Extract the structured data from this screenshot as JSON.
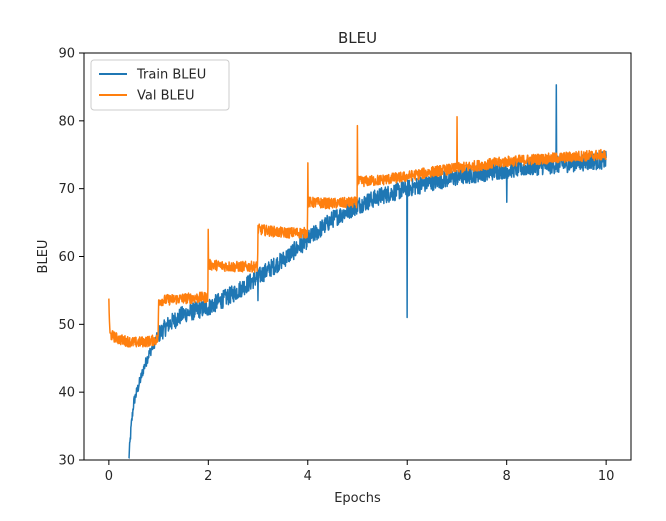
{
  "chart_data": {
    "type": "line",
    "title": "BLEU",
    "xlabel": "Epochs",
    "ylabel": "BLEU",
    "xlim": [
      -0.5,
      10.5
    ],
    "ylim": [
      30,
      90
    ],
    "xticks": [
      0,
      2,
      4,
      6,
      8,
      10
    ],
    "yticks": [
      30,
      40,
      50,
      60,
      70,
      80,
      90
    ],
    "grid": false,
    "legend_position": "top-left",
    "series": [
      {
        "name": "Train BLEU",
        "color": "#1f77b4",
        "points": [
          [
            0.4,
            30
          ],
          [
            0.45,
            35
          ],
          [
            0.5,
            38.5
          ],
          [
            0.6,
            41
          ],
          [
            0.7,
            43.5
          ],
          [
            0.8,
            45.5
          ],
          [
            0.9,
            47
          ],
          [
            1.0,
            48.5
          ],
          [
            1.2,
            50
          ],
          [
            1.5,
            51.5
          ],
          [
            2.0,
            52.5
          ],
          [
            2.5,
            54.5
          ],
          [
            3.0,
            57
          ],
          [
            3.5,
            59.5
          ],
          [
            4.0,
            62.5
          ],
          [
            4.5,
            65.5
          ],
          [
            5.0,
            67.5
          ],
          [
            5.5,
            69
          ],
          [
            6.0,
            70
          ],
          [
            6.5,
            71
          ],
          [
            7.0,
            71.7
          ],
          [
            7.5,
            72.3
          ],
          [
            8.0,
            72.8
          ],
          [
            8.5,
            73.2
          ],
          [
            9.0,
            73.5
          ],
          [
            9.5,
            73.9
          ],
          [
            10.0,
            74.2
          ]
        ],
        "spikes": [
          {
            "x": 3.0,
            "y": 53.5
          },
          {
            "x": 6.0,
            "y": 51
          },
          {
            "x": 8.0,
            "y": 68
          },
          {
            "x": 9.0,
            "y": 85.3
          }
        ]
      },
      {
        "name": "Val BLEU",
        "color": "#ff7f0e",
        "points": [
          [
            0.0,
            53.5
          ],
          [
            0.02,
            48.5
          ],
          [
            0.2,
            47.8
          ],
          [
            0.5,
            47.3
          ],
          [
            0.8,
            47.5
          ],
          [
            0.99,
            47.8
          ],
          [
            1.0,
            53.5
          ],
          [
            1.5,
            53.8
          ],
          [
            1.99,
            54.0
          ],
          [
            2.0,
            58.8
          ],
          [
            2.5,
            58.5
          ],
          [
            2.99,
            58.5
          ],
          [
            3.0,
            64.0
          ],
          [
            3.5,
            63.5
          ],
          [
            3.99,
            63.5
          ],
          [
            4.0,
            68.0
          ],
          [
            4.5,
            67.8
          ],
          [
            4.99,
            68.0
          ],
          [
            5.0,
            71.0
          ],
          [
            5.5,
            71.3
          ],
          [
            6.0,
            71.8
          ],
          [
            6.5,
            72.5
          ],
          [
            7.0,
            73.0
          ],
          [
            7.5,
            73.5
          ],
          [
            8.0,
            74.0
          ],
          [
            8.5,
            74.3
          ],
          [
            9.0,
            74.5
          ],
          [
            9.5,
            74.8
          ],
          [
            10.0,
            75.0
          ]
        ],
        "spikes": [
          {
            "x": 0.0,
            "y": 53.8
          },
          {
            "x": 2.0,
            "y": 64.0
          },
          {
            "x": 4.0,
            "y": 73.8
          },
          {
            "x": 5.0,
            "y": 79.3
          },
          {
            "x": 7.0,
            "y": 80.6
          }
        ]
      }
    ]
  }
}
